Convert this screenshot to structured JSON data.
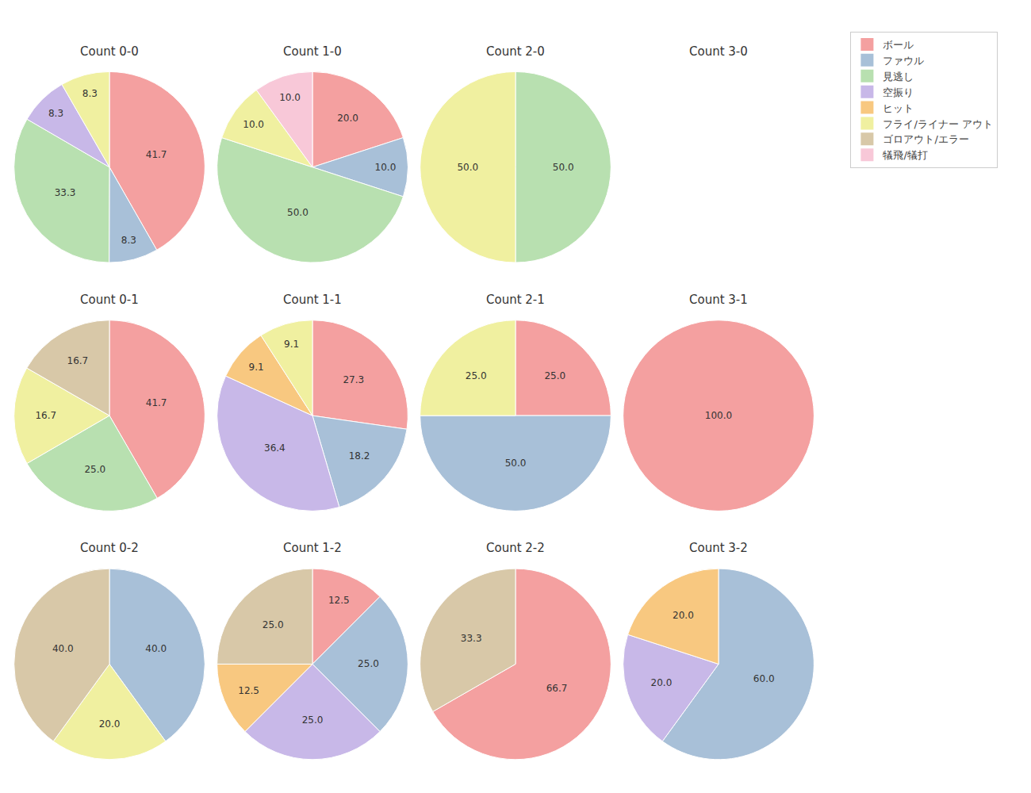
{
  "chart_data": {
    "type": "pie",
    "categories": [
      "ボール",
      "ファウル",
      "見逃し",
      "空振り",
      "ヒット",
      "フライ/ライナー アウト",
      "ゴロアウト/エラー",
      "犠飛/犠打"
    ],
    "colors": [
      "#F4A0A0",
      "#A8C0D8",
      "#B8E0B0",
      "#C8B8E8",
      "#F8C880",
      "#F0F0A0",
      "#D8C8A8",
      "#F8C8D8"
    ],
    "legend": "upper right",
    "data_labels": true,
    "series": [
      {
        "title": "Count 0-0",
        "values": [
          41.7,
          8.3,
          33.3,
          8.3,
          0,
          8.3,
          0,
          0
        ],
        "value_labels": [
          "41.7",
          "8.3",
          "33.3",
          "8.3",
          null,
          "8.3",
          null,
          null
        ]
      },
      {
        "title": "Count 1-0",
        "values": [
          20.0,
          10.0,
          50.0,
          0,
          0,
          10.0,
          0,
          10.0
        ],
        "value_labels": [
          "20.0",
          "10.0",
          "50.0",
          null,
          null,
          "10.0",
          null,
          "10.0"
        ]
      },
      {
        "title": "Count 2-0",
        "values": [
          0,
          0,
          50.0,
          0,
          0,
          50.0,
          0,
          0
        ],
        "value_labels": [
          null,
          null,
          "50.0",
          null,
          null,
          "50.0",
          null,
          null
        ]
      },
      {
        "title": "Count 3-0",
        "values": [
          0,
          0,
          0,
          0,
          0,
          0,
          0,
          0
        ],
        "value_labels": [
          null,
          null,
          null,
          null,
          null,
          null,
          null,
          null
        ]
      },
      {
        "title": "Count 0-1",
        "values": [
          41.7,
          0,
          25.0,
          0,
          0,
          16.7,
          16.7,
          0
        ],
        "value_labels": [
          "41.7",
          null,
          "25.0",
          null,
          null,
          "16.7",
          "16.7",
          null
        ]
      },
      {
        "title": "Count 1-1",
        "values": [
          27.3,
          18.2,
          0,
          36.4,
          9.1,
          9.1,
          0,
          0
        ],
        "value_labels": [
          "27.3",
          "18.2",
          null,
          "36.4",
          "9.1",
          "9.1",
          null,
          null
        ]
      },
      {
        "title": "Count 2-1",
        "values": [
          25.0,
          50.0,
          0,
          0,
          0,
          25.0,
          0,
          0
        ],
        "value_labels": [
          "25.0",
          "50.0",
          null,
          null,
          null,
          "25.0",
          null,
          null
        ]
      },
      {
        "title": "Count 3-1",
        "values": [
          100.0,
          0,
          0,
          0,
          0,
          0,
          0,
          0
        ],
        "value_labels": [
          "100.0",
          null,
          null,
          null,
          null,
          null,
          null,
          null
        ]
      },
      {
        "title": "Count 0-2",
        "values": [
          0,
          40.0,
          0,
          0,
          0,
          20.0,
          40.0,
          0
        ],
        "value_labels": [
          null,
          "40.0",
          null,
          null,
          null,
          "20.0",
          "40.0",
          null
        ]
      },
      {
        "title": "Count 1-2",
        "values": [
          12.5,
          25.0,
          0,
          25.0,
          12.5,
          0,
          25.0,
          0
        ],
        "value_labels": [
          "12.5",
          "25.0",
          null,
          "25.0",
          "12.5",
          null,
          "25.0",
          null
        ]
      },
      {
        "title": "Count 2-2",
        "values": [
          66.7,
          0,
          0,
          0,
          0,
          0,
          33.3,
          0
        ],
        "value_labels": [
          "66.7",
          null,
          null,
          null,
          null,
          null,
          "33.3",
          null
        ]
      },
      {
        "title": "Count 3-2",
        "values": [
          0,
          60.0,
          0,
          20.0,
          20.0,
          0,
          0,
          0
        ],
        "value_labels": [
          null,
          "60.0",
          null,
          "20.0",
          "20.0",
          null,
          null,
          null
        ]
      }
    ]
  }
}
